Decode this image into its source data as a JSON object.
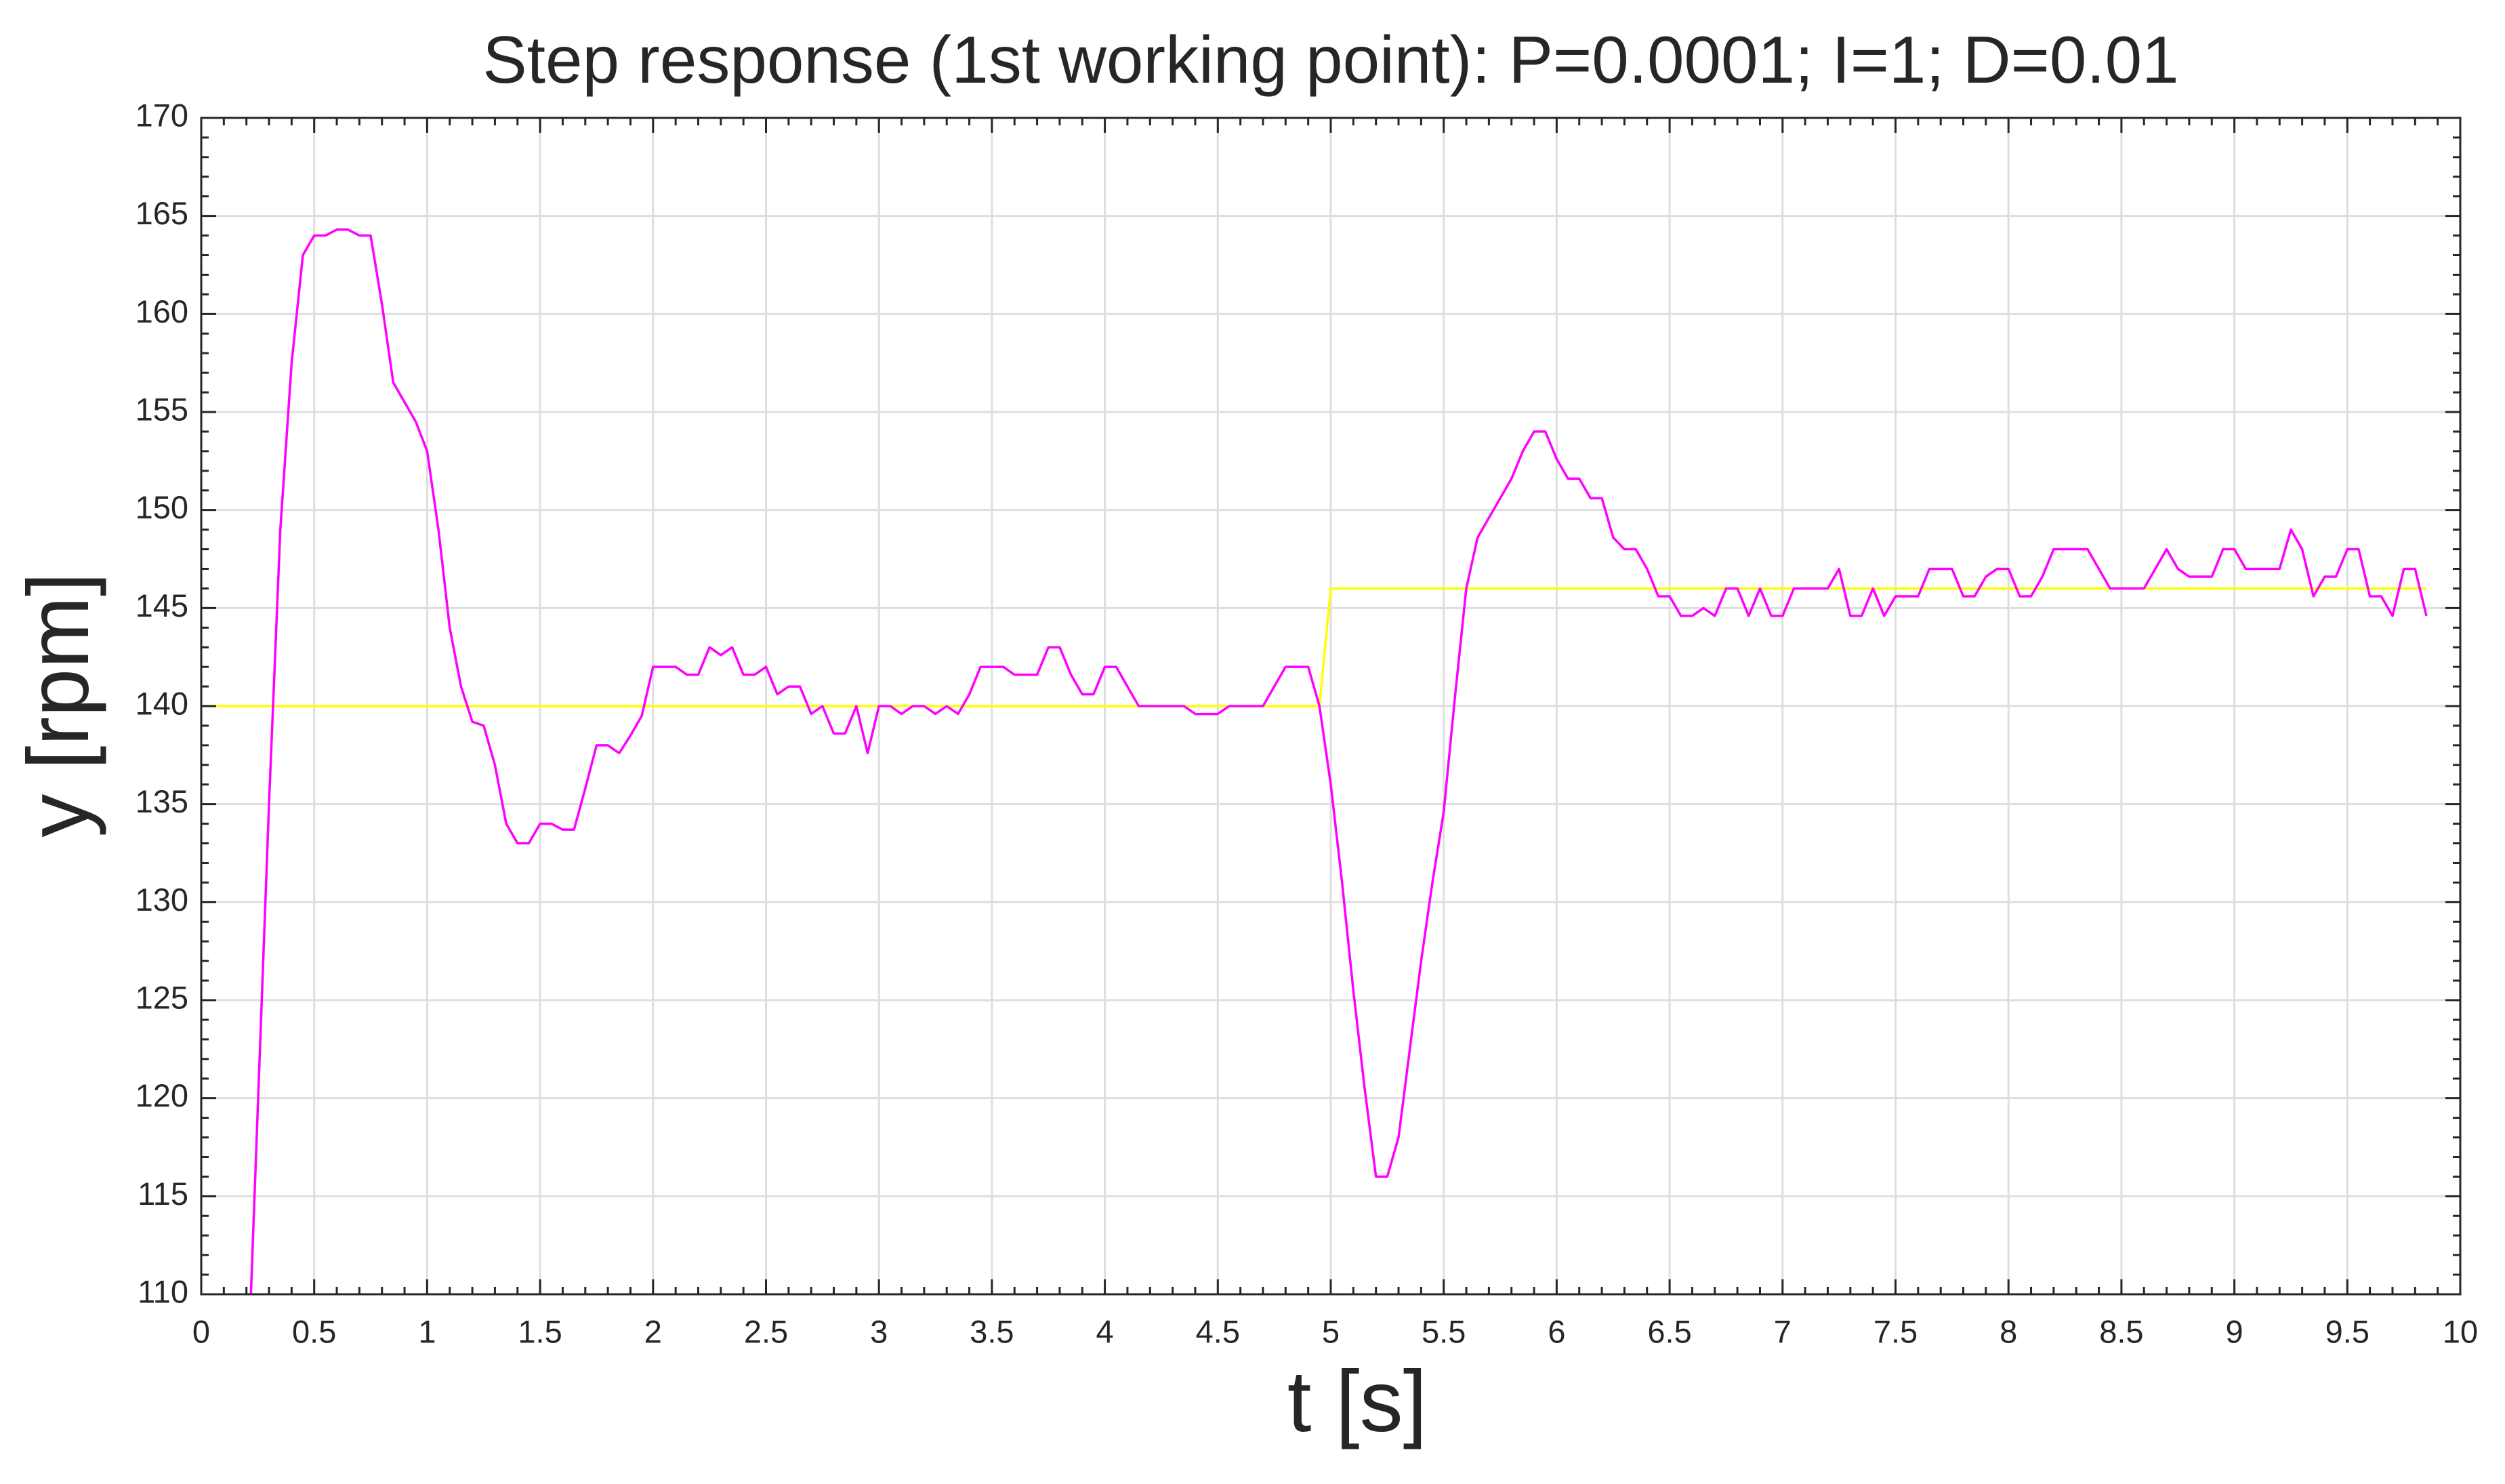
{
  "chart_data": {
    "type": "line",
    "title": "Step response (1st working point): P=0.0001; I=1; D=0.01",
    "x_label": "t [s]",
    "y_label": "y [rpm]",
    "xlim": [
      0,
      10
    ],
    "ylim": [
      110,
      170
    ],
    "xticks": [
      0,
      0.5,
      1,
      1.5,
      2,
      2.5,
      3,
      3.5,
      4,
      4.5,
      5,
      5.5,
      6,
      6.5,
      7,
      7.5,
      8,
      8.5,
      9,
      9.5,
      10
    ],
    "yticks": [
      110,
      115,
      120,
      125,
      130,
      135,
      140,
      145,
      150,
      155,
      160,
      165,
      170
    ],
    "grid": true,
    "series": [
      {
        "color": "#ffff00",
        "x": [
          0,
          4.95,
          5.0,
          9.85
        ],
        "values": [
          140,
          140,
          146,
          146
        ]
      },
      {
        "color": "#ff00ff",
        "x": [
          0.22,
          0.3,
          0.35,
          0.4,
          0.45,
          0.5,
          0.55,
          0.6,
          0.65,
          0.7,
          0.75,
          0.8,
          0.85,
          0.9,
          0.95,
          1.0,
          1.05,
          1.1,
          1.15,
          1.2,
          1.25,
          1.3,
          1.35,
          1.4,
          1.45,
          1.5,
          1.55,
          1.6,
          1.65,
          1.7,
          1.75,
          1.8,
          1.85,
          1.9,
          1.95,
          2.0,
          2.05,
          2.1,
          2.15,
          2.2,
          2.25,
          2.3,
          2.35,
          2.4,
          2.45,
          2.5,
          2.55,
          2.6,
          2.65,
          2.7,
          2.75,
          2.8,
          2.85,
          2.9,
          2.95,
          3.0,
          3.05,
          3.1,
          3.15,
          3.2,
          3.25,
          3.3,
          3.35,
          3.4,
          3.45,
          3.5,
          3.55,
          3.6,
          3.65,
          3.7,
          3.75,
          3.8,
          3.85,
          3.9,
          3.95,
          4.0,
          4.05,
          4.1,
          4.15,
          4.35,
          4.4,
          4.5,
          4.55,
          4.7,
          4.75,
          4.8,
          4.9,
          4.95,
          5.0,
          5.05,
          5.1,
          5.15,
          5.2,
          5.25,
          5.3,
          5.35,
          5.4,
          5.45,
          5.5,
          5.55,
          5.6,
          5.65,
          5.7,
          5.75,
          5.8,
          5.85,
          5.9,
          5.95,
          6.0,
          6.05,
          6.1,
          6.15,
          6.2,
          6.25,
          6.3,
          6.35,
          6.4,
          6.45,
          6.5,
          6.55,
          6.6,
          6.65,
          6.7,
          6.75,
          6.8,
          6.85,
          6.9,
          6.95,
          7.0,
          7.05,
          7.2,
          7.25,
          7.3,
          7.35,
          7.4,
          7.45,
          7.5,
          7.6,
          7.65,
          7.75,
          7.8,
          7.85,
          7.9,
          7.95,
          8.0,
          8.05,
          8.1,
          8.15,
          8.2,
          8.35,
          8.45,
          8.6,
          8.7,
          8.75,
          8.8,
          8.9,
          8.95,
          9.0,
          9.05,
          9.2,
          9.25,
          9.3,
          9.35,
          9.4,
          9.45,
          9.5,
          9.55,
          9.6,
          9.65,
          9.7,
          9.75,
          9.8,
          9.85
        ],
        "values": [
          110,
          135,
          149,
          157.5,
          163,
          164,
          164,
          164.3,
          164.3,
          164,
          164,
          160.5,
          156.5,
          155.5,
          154.5,
          153,
          149,
          144,
          141,
          139.2,
          139,
          137,
          134,
          133,
          133,
          134,
          134,
          133.7,
          133.7,
          135.8,
          138,
          138,
          137.6,
          138.5,
          139.5,
          142,
          142,
          142,
          141.6,
          141.6,
          143,
          142.6,
          143,
          141.6,
          141.6,
          142,
          140.6,
          141,
          141,
          139.6,
          140,
          138.6,
          138.6,
          140,
          137.6,
          140,
          140,
          139.6,
          140,
          140,
          139.6,
          140,
          139.6,
          140.6,
          142,
          142,
          142,
          141.6,
          141.6,
          141.6,
          143,
          143,
          141.6,
          140.6,
          140.6,
          142,
          142,
          141,
          140,
          140,
          139.6,
          139.6,
          140,
          140,
          141,
          142,
          142,
          140,
          136,
          131,
          125.5,
          120.5,
          116,
          116,
          118,
          122.5,
          127,
          131,
          134.6,
          140.5,
          146,
          148.6,
          149.6,
          150.6,
          151.6,
          153,
          154,
          154,
          152.6,
          151.6,
          151.6,
          150.6,
          150.6,
          148.6,
          148,
          148,
          147,
          145.6,
          145.6,
          144.6,
          144.6,
          145,
          144.6,
          146,
          146,
          144.6,
          146,
          144.6,
          144.6,
          146,
          146,
          147,
          144.6,
          144.6,
          146,
          144.6,
          145.6,
          145.6,
          147,
          147,
          145.6,
          145.6,
          146.6,
          147,
          147,
          145.6,
          145.6,
          146.6,
          148,
          148,
          146,
          146,
          148,
          147,
          146.6,
          146.6,
          148,
          148,
          147,
          147,
          149,
          148,
          145.6,
          146.6,
          146.6,
          148,
          148,
          145.6,
          145.6,
          144.6,
          147,
          147,
          144.6
        ]
      }
    ]
  }
}
